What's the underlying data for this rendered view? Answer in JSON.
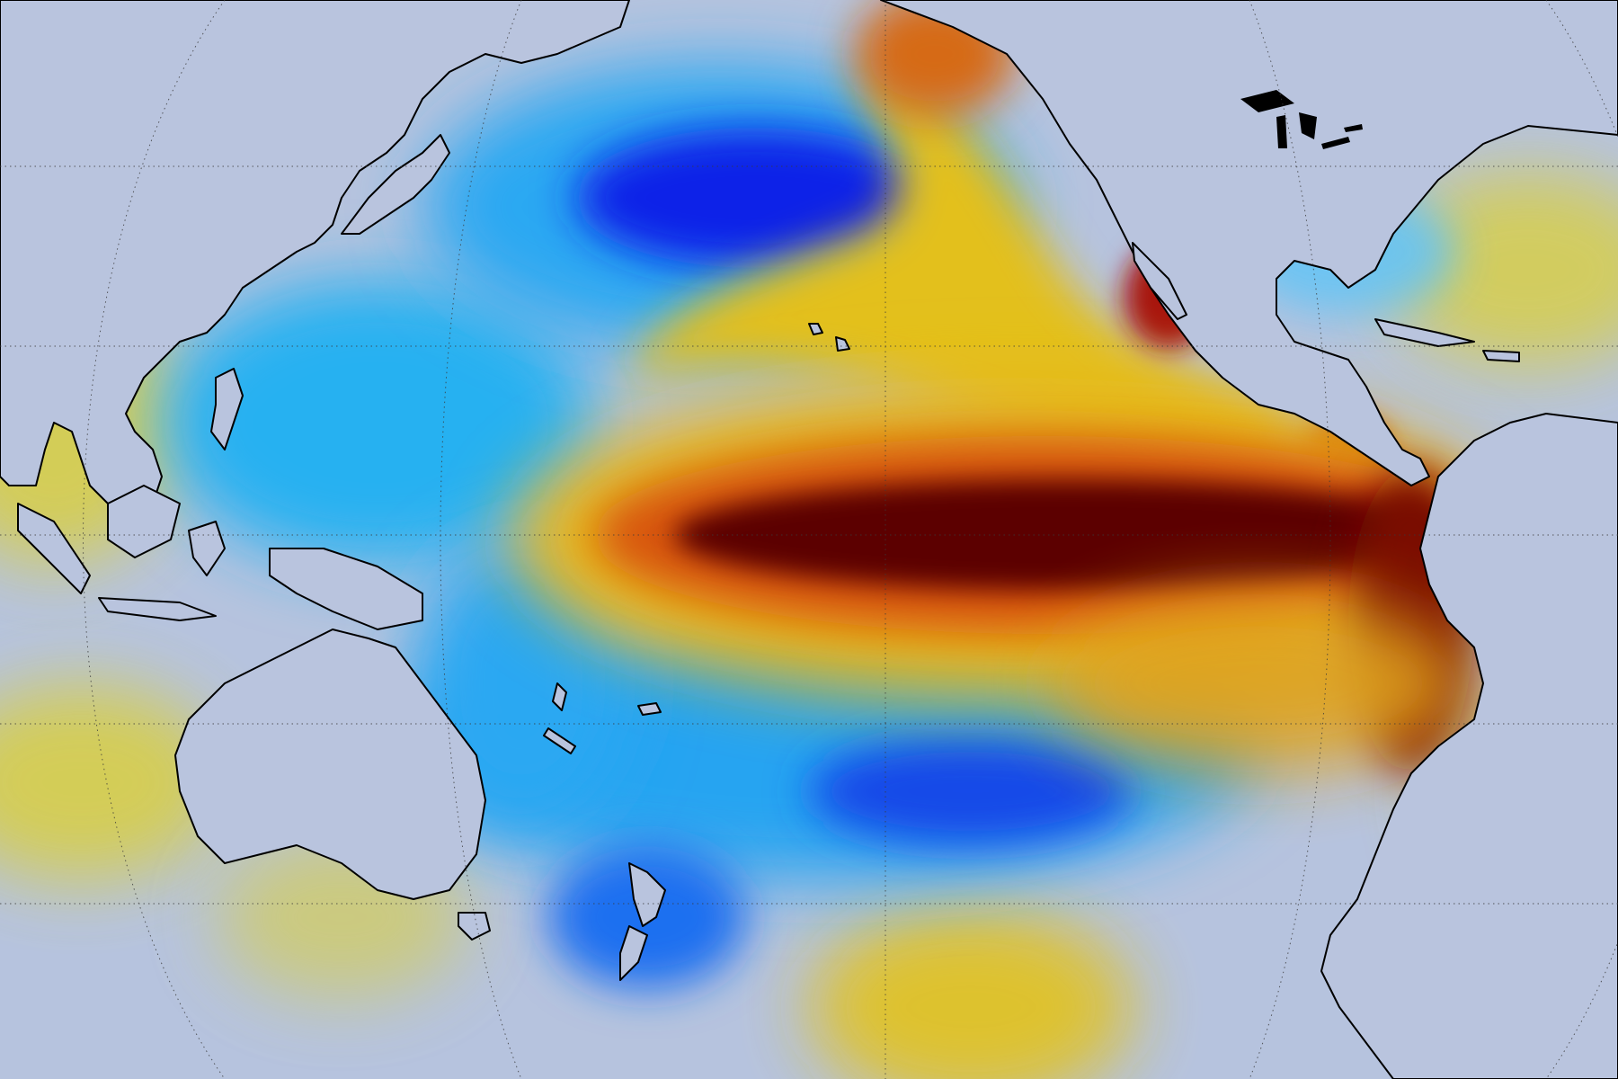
{
  "map": {
    "projection": "global-robinson-style-pacific-centered",
    "colors": {
      "land": "#b9c4de",
      "neutral_ocean": "#b6c3de",
      "coastline": "#000000",
      "graticule": "#3a3a3a",
      "strong_negative": "#0b22e6",
      "negative": "#1fa0f0",
      "weak_negative": "#6cc6f4",
      "weak_positive": "#d8cf3a",
      "positive": "#e7b11c",
      "strong_positive": "#d84a12",
      "extreme_positive": "#5c0000"
    },
    "features": [
      {
        "name": "equatorial-warm-tongue",
        "sign": "positive",
        "intensity": "extreme"
      },
      {
        "name": "north-pacific-cold-pool",
        "sign": "negative",
        "intensity": "strong"
      },
      {
        "name": "south-pacific-cold-band",
        "sign": "negative",
        "intensity": "strong"
      },
      {
        "name": "west-pacific-cold-area",
        "sign": "negative",
        "intensity": "moderate"
      },
      {
        "name": "northeast-pacific-warm-arc",
        "sign": "positive",
        "intensity": "strong"
      },
      {
        "name": "south-pacific-warm-patch",
        "sign": "positive",
        "intensity": "weak"
      }
    ]
  }
}
